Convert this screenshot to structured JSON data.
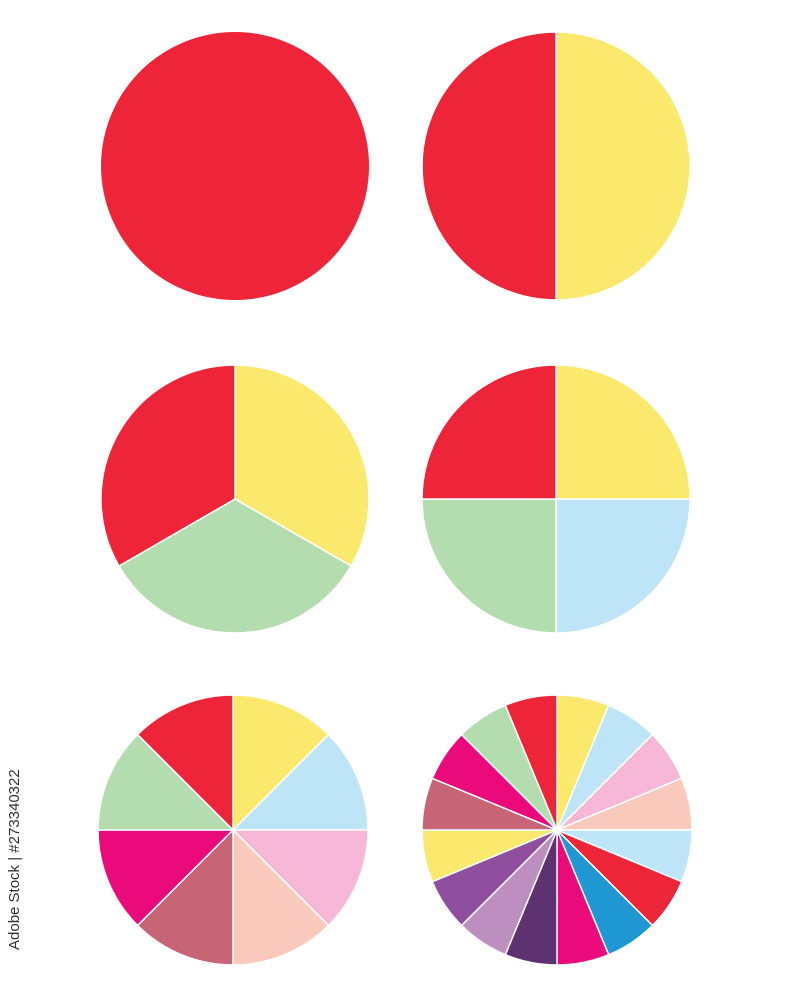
{
  "credit": "Adobe Stock | #273340322",
  "palette": {
    "red": "#EE2539",
    "yellow": "#FBE96E",
    "green": "#B3DCAF",
    "light_blue": "#BEE4F8",
    "pink": "#F6B8D6",
    "peach": "#F9C9BB",
    "mauve": "#C76476",
    "magenta": "#EB0A7B",
    "blue": "#1E97D3",
    "dark_purple": "#5E3170",
    "lavender": "#BD8FC0",
    "purple": "#904F9E"
  },
  "chart_data": [
    {
      "type": "pie",
      "values": [
        1
      ],
      "colors": [
        "#EE2539"
      ]
    },
    {
      "type": "pie",
      "values": [
        1,
        1
      ],
      "colors": [
        "#FBE96E",
        "#EE2539"
      ]
    },
    {
      "type": "pie",
      "values": [
        1,
        1,
        1
      ],
      "colors": [
        "#FBE96E",
        "#B3DCAF",
        "#EE2539"
      ]
    },
    {
      "type": "pie",
      "values": [
        1,
        1,
        1,
        1
      ],
      "colors": [
        "#FBE96E",
        "#BEE4F8",
        "#B3DCAF",
        "#EE2539"
      ]
    },
    {
      "type": "pie",
      "values": [
        1,
        1,
        1,
        1,
        1,
        1,
        1,
        1
      ],
      "colors": [
        "#FBE96E",
        "#BEE4F8",
        "#F6B8D6",
        "#F9C9BB",
        "#C76476",
        "#EB0A7B",
        "#B3DCAF",
        "#EE2539"
      ]
    },
    {
      "type": "pie",
      "values": [
        1,
        1,
        1,
        1,
        1,
        1,
        1,
        1,
        1,
        1,
        1,
        1,
        1,
        1,
        1,
        1
      ],
      "colors": [
        "#FBE96E",
        "#BEE4F8",
        "#F6B8D6",
        "#F9C9BB",
        "#BEE4F8",
        "#EE2539",
        "#1E97D3",
        "#EB0A7B",
        "#5E3170",
        "#BD8FC0",
        "#904F9E",
        "#FBE96E",
        "#C76476",
        "#EB0A7B",
        "#B3DCAF",
        "#EE2539"
      ]
    }
  ]
}
